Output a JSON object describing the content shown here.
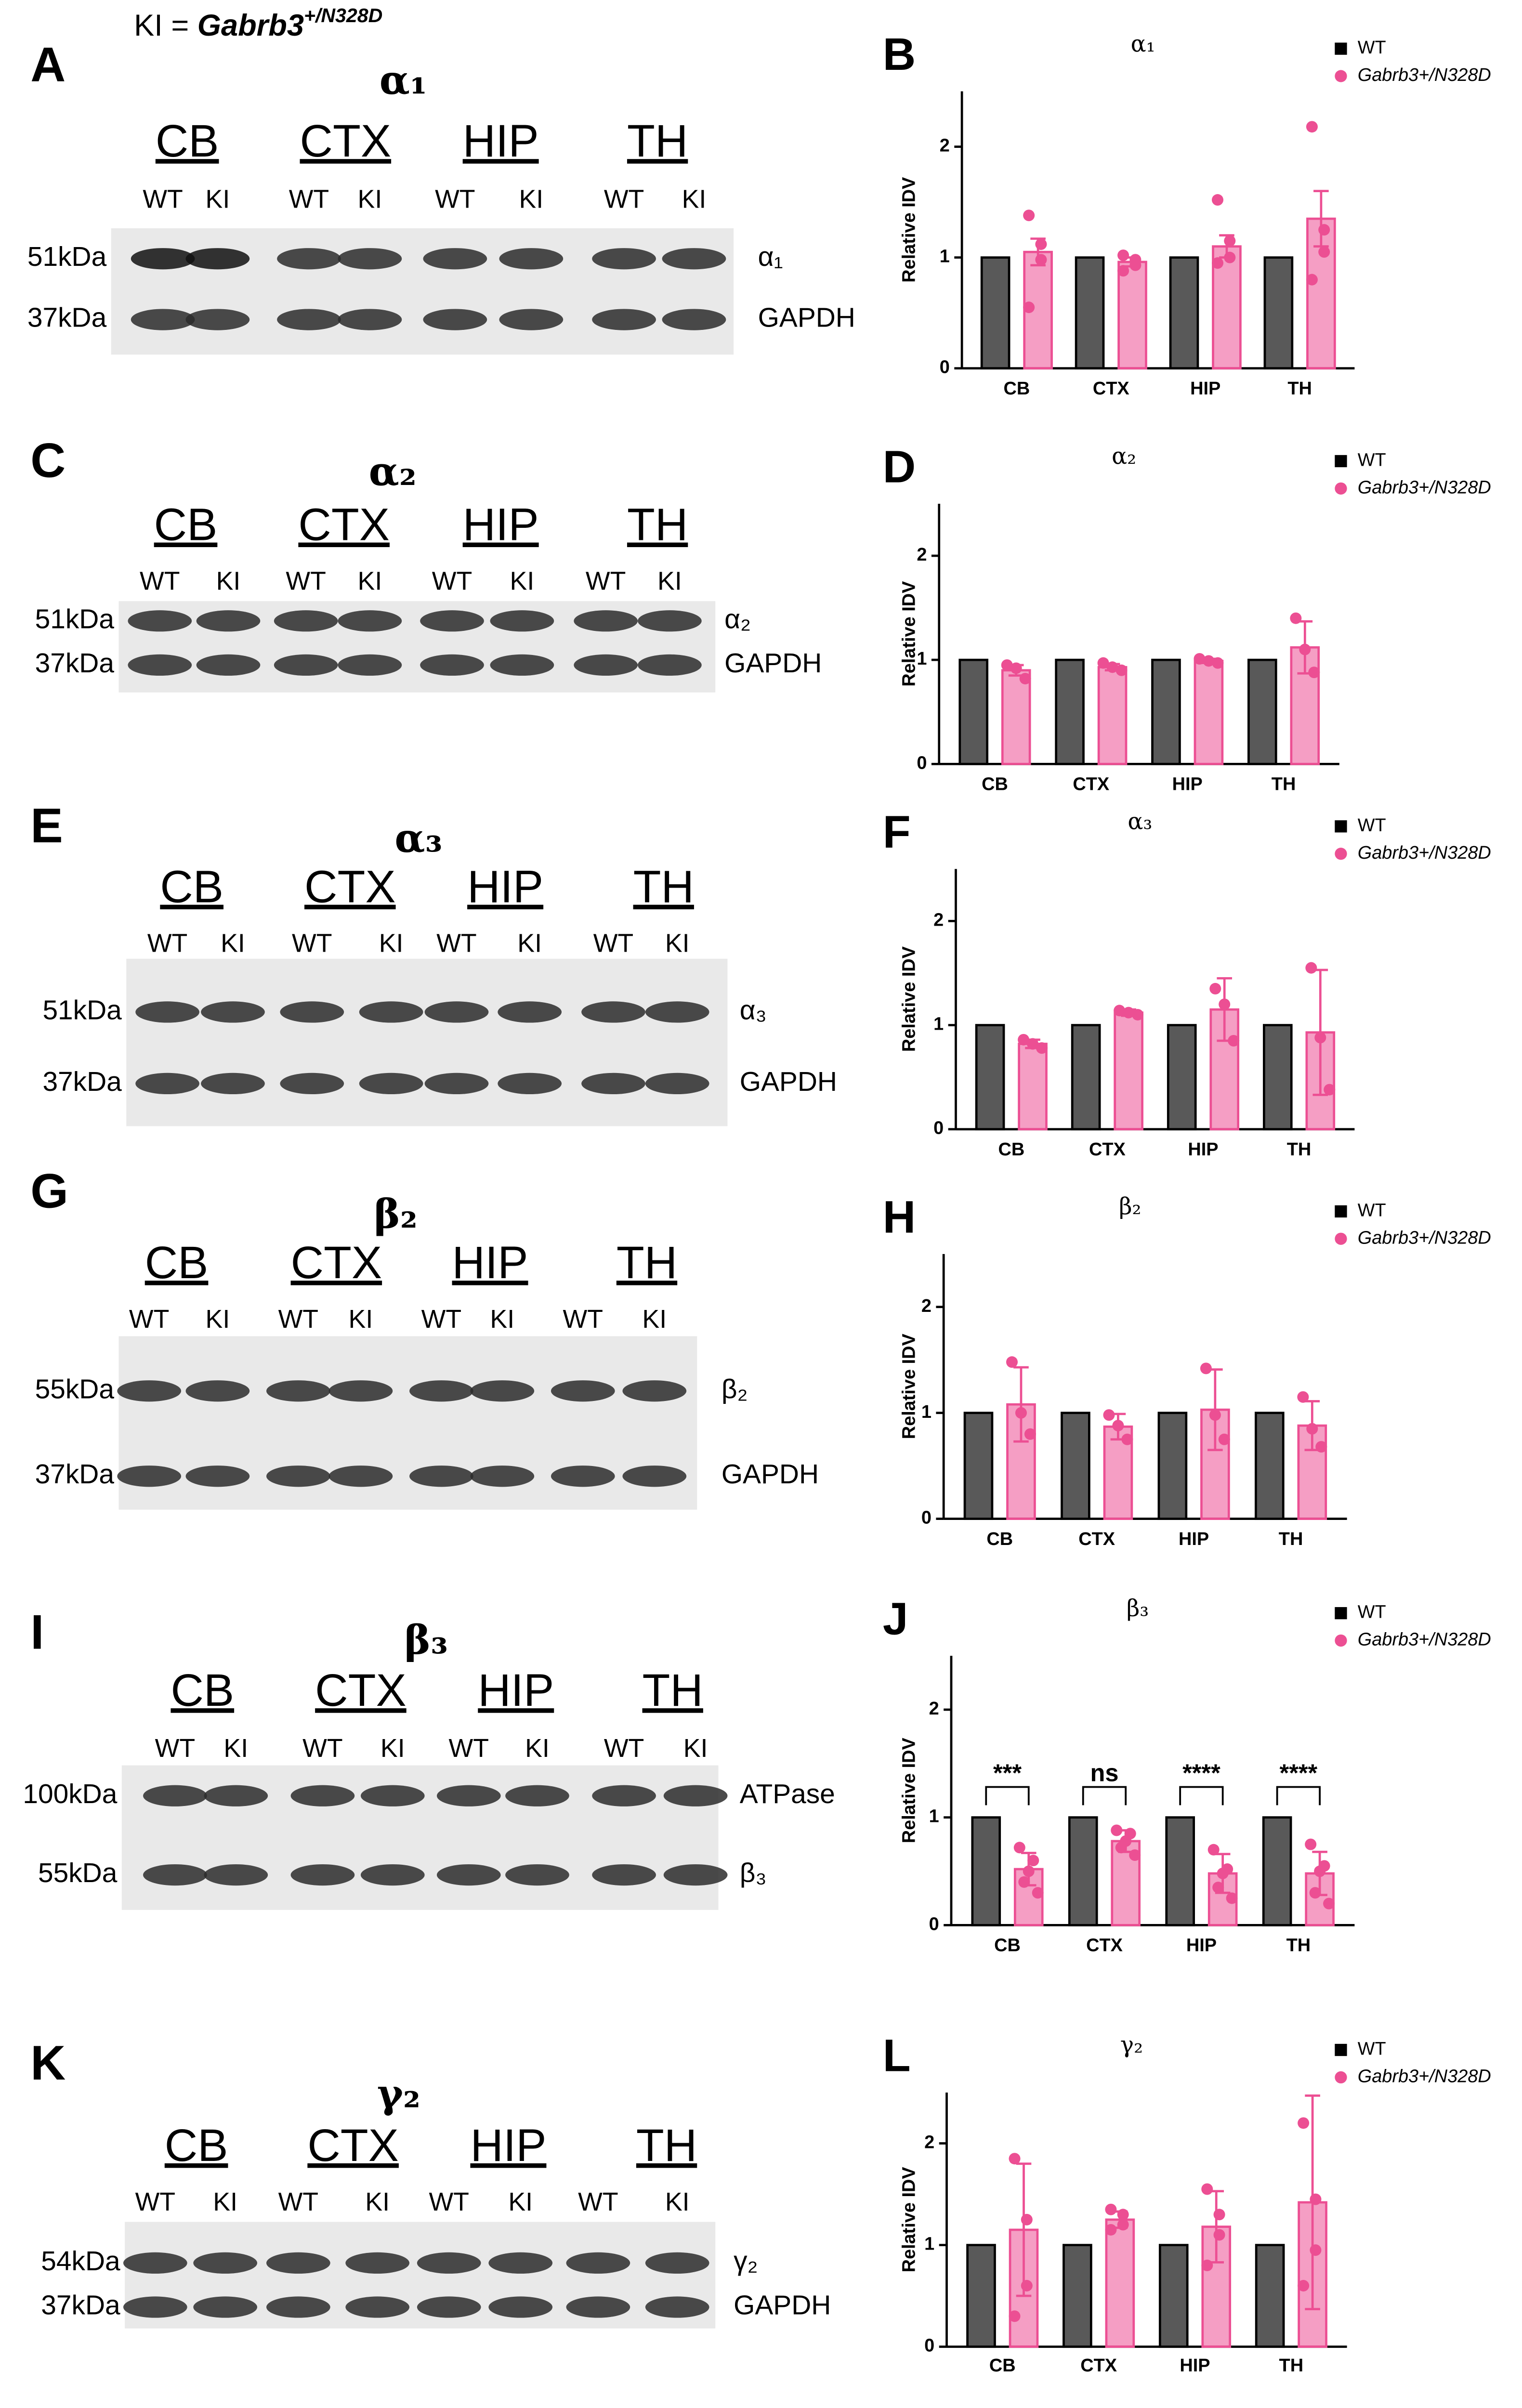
{
  "header": {
    "ki_prefix": "KI = ",
    "ki_gene": "Gabrb3",
    "ki_sup": "+/N328D"
  },
  "blots": [
    {
      "letter": "A",
      "title": "α₁",
      "regions": [
        "CB",
        "CTX",
        "HIP",
        "TH"
      ],
      "lanes": [
        "WT",
        "KI",
        "WT",
        "KI",
        "WT",
        "KI",
        "WT",
        "KI"
      ],
      "markers": [
        "51kDa",
        "37kDa"
      ],
      "bands": [
        "α₁",
        "GAPDH"
      ]
    },
    {
      "letter": "C",
      "title": "α₂",
      "regions": [
        "CB",
        "CTX",
        "HIP",
        "TH"
      ],
      "lanes": [
        "WT",
        "KI",
        "WT",
        "KI",
        "WT",
        "KI",
        "WT",
        "KI"
      ],
      "markers": [
        "51kDa",
        "37kDa"
      ],
      "bands": [
        "α₂",
        "GAPDH"
      ]
    },
    {
      "letter": "E",
      "title": "α₃",
      "regions": [
        "CB",
        "CTX",
        "HIP",
        "TH"
      ],
      "lanes": [
        "WT",
        "KI",
        "WT",
        "KI",
        "WT",
        "KI",
        "WT",
        "KI"
      ],
      "markers": [
        "51kDa",
        "37kDa"
      ],
      "bands": [
        "α₃",
        "GAPDH"
      ]
    },
    {
      "letter": "G",
      "title": "β₂",
      "regions": [
        "CB",
        "CTX",
        "HIP",
        "TH"
      ],
      "lanes": [
        "WT",
        "KI",
        "WT",
        "KI",
        "WT",
        "KI",
        "WT",
        "KI"
      ],
      "markers": [
        "55kDa",
        "37kDa"
      ],
      "bands": [
        "β₂",
        "GAPDH"
      ]
    },
    {
      "letter": "I",
      "title": "β₃",
      "regions": [
        "CB",
        "CTX",
        "HIP",
        "TH"
      ],
      "lanes": [
        "WT",
        "KI",
        "WT",
        "KI",
        "WT",
        "KI",
        "WT",
        "KI"
      ],
      "markers": [
        "100kDa",
        "55kDa"
      ],
      "bands": [
        "ATPase",
        "β₃"
      ]
    },
    {
      "letter": "K",
      "title": "γ₂",
      "regions": [
        "CB",
        "CTX",
        "HIP",
        "TH"
      ],
      "lanes": [
        "WT",
        "KI",
        "WT",
        "KI",
        "WT",
        "KI",
        "WT",
        "KI"
      ],
      "markers": [
        "54kDa",
        "37kDa"
      ],
      "bands": [
        "γ₂",
        "GAPDH"
      ]
    }
  ],
  "chart_data": [
    {
      "type": "bar",
      "letter": "B",
      "title": "α₁",
      "ylabel": "Relative IDV",
      "categories": [
        "CB",
        "CTX",
        "HIP",
        "TH"
      ],
      "ylim": [
        0,
        2.5
      ],
      "yticks": [
        0,
        1,
        2
      ],
      "series": [
        {
          "name": "WT",
          "color": "#595959",
          "values": [
            1,
            1,
            1,
            1
          ]
        },
        {
          "name": "Gabrb3+/N328D",
          "color": "#ec4f93",
          "values": [
            1.05,
            0.96,
            1.1,
            1.35
          ],
          "errors": [
            0.12,
            0.04,
            0.1,
            0.25
          ],
          "points": [
            [
              1.38,
              1.12,
              0.98,
              0.55
            ],
            [
              1.02,
              0.98,
              0.93,
              0.88
            ],
            [
              1.52,
              1.15,
              1.0,
              0.95
            ],
            [
              2.18,
              1.25,
              1.05,
              0.8
            ]
          ]
        }
      ]
    },
    {
      "type": "bar",
      "letter": "D",
      "title": "α₂",
      "ylabel": "Relative IDV",
      "categories": [
        "CB",
        "CTX",
        "HIP",
        "TH"
      ],
      "ylim": [
        0,
        2.5
      ],
      "yticks": [
        0,
        1,
        2
      ],
      "series": [
        {
          "name": "WT",
          "color": "#595959",
          "values": [
            1,
            1,
            1,
            1
          ]
        },
        {
          "name": "Gabrb3+/N328D",
          "color": "#ec4f93",
          "values": [
            0.9,
            0.93,
            0.99,
            1.12
          ],
          "errors": [
            0.05,
            0.03,
            0.02,
            0.25
          ],
          "points": [
            [
              0.95,
              0.92,
              0.82
            ],
            [
              0.97,
              0.93,
              0.9
            ],
            [
              1.01,
              0.99,
              0.97
            ],
            [
              1.4,
              1.1,
              0.88
            ]
          ]
        }
      ]
    },
    {
      "type": "bar",
      "letter": "F",
      "title": "α₃",
      "ylabel": "Relative IDV",
      "categories": [
        "CB",
        "CTX",
        "HIP",
        "TH"
      ],
      "ylim": [
        0,
        2.5
      ],
      "yticks": [
        0,
        1,
        2
      ],
      "series": [
        {
          "name": "WT",
          "color": "#595959",
          "values": [
            1,
            1,
            1,
            1
          ]
        },
        {
          "name": "Gabrb3+/N328D",
          "color": "#ec4f93",
          "values": [
            0.82,
            1.12,
            1.15,
            0.93
          ],
          "errors": [
            0.04,
            0.03,
            0.3,
            0.6
          ],
          "points": [
            [
              0.86,
              0.82,
              0.78
            ],
            [
              1.14,
              1.12,
              1.1
            ],
            [
              1.35,
              1.2,
              0.85
            ],
            [
              1.55,
              0.88,
              0.38
            ]
          ]
        }
      ]
    },
    {
      "type": "bar",
      "letter": "H",
      "title": "β₂",
      "ylabel": "Relative IDV",
      "categories": [
        "CB",
        "CTX",
        "HIP",
        "TH"
      ],
      "ylim": [
        0,
        2.5
      ],
      "yticks": [
        0,
        1,
        2
      ],
      "series": [
        {
          "name": "WT",
          "color": "#595959",
          "values": [
            1,
            1,
            1,
            1
          ]
        },
        {
          "name": "Gabrb3+/N328D",
          "color": "#ec4f93",
          "values": [
            1.08,
            0.87,
            1.03,
            0.88
          ],
          "errors": [
            0.35,
            0.12,
            0.38,
            0.23
          ],
          "points": [
            [
              1.48,
              1.0,
              0.8
            ],
            [
              0.98,
              0.88,
              0.75
            ],
            [
              1.42,
              0.98,
              0.75
            ],
            [
              1.15,
              0.85,
              0.68
            ]
          ]
        }
      ]
    },
    {
      "type": "bar",
      "letter": "J",
      "title": "β₃",
      "ylabel": "Relative IDV",
      "categories": [
        "CB",
        "CTX",
        "HIP",
        "TH"
      ],
      "ylim": [
        0,
        2.5
      ],
      "yticks": [
        0,
        1,
        2
      ],
      "annotations": [
        "***",
        "ns",
        "****",
        "****"
      ],
      "series": [
        {
          "name": "WT",
          "color": "#595959",
          "values": [
            1,
            1,
            1,
            1
          ]
        },
        {
          "name": "Gabrb3+/N328D",
          "color": "#ec4f93",
          "values": [
            0.52,
            0.78,
            0.48,
            0.48
          ],
          "errors": [
            0.15,
            0.1,
            0.18,
            0.2
          ],
          "points": [
            [
              0.72,
              0.6,
              0.5,
              0.4,
              0.3
            ],
            [
              0.88,
              0.85,
              0.78,
              0.72,
              0.65
            ],
            [
              0.7,
              0.52,
              0.48,
              0.35,
              0.25
            ],
            [
              0.75,
              0.55,
              0.5,
              0.3,
              0.2
            ]
          ]
        }
      ]
    },
    {
      "type": "bar",
      "letter": "L",
      "title": "γ₂",
      "ylabel": "Relative IDV",
      "categories": [
        "CB",
        "CTX",
        "HIP",
        "TH"
      ],
      "ylim": [
        0,
        2.5
      ],
      "yticks": [
        0,
        1,
        2
      ],
      "series": [
        {
          "name": "WT",
          "color": "#595959",
          "values": [
            1,
            1,
            1,
            1
          ]
        },
        {
          "name": "Gabrb3+/N328D",
          "color": "#ec4f93",
          "values": [
            1.15,
            1.25,
            1.18,
            1.42
          ],
          "errors": [
            0.65,
            0.08,
            0.35,
            1.05
          ],
          "points": [
            [
              1.85,
              1.25,
              0.6,
              0.3
            ],
            [
              1.35,
              1.3,
              1.2,
              1.15
            ],
            [
              1.55,
              1.3,
              1.1,
              0.8
            ],
            [
              2.2,
              1.45,
              0.95,
              0.6
            ]
          ]
        }
      ]
    }
  ]
}
